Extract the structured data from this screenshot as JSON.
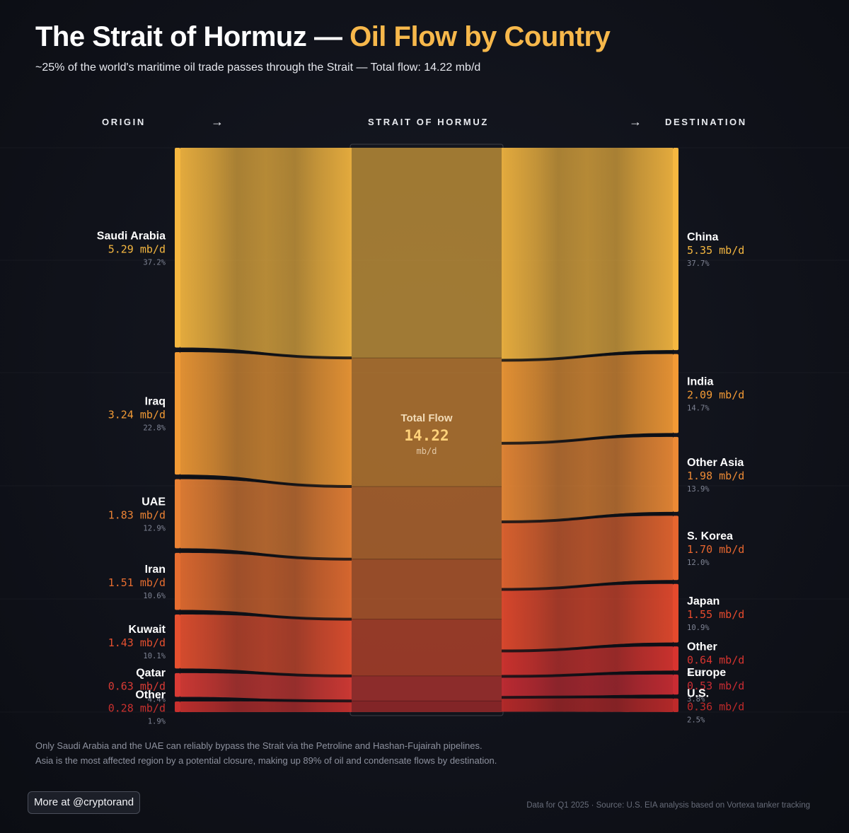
{
  "header": {
    "title_main": "The Strait of Hormuz — ",
    "title_accent": "Oil Flow by Country",
    "subtitle": "~25% of the world's maritime oil trade passes through the Strait — Total flow: 14.22 mb/d"
  },
  "columns": {
    "origin": "ORIGIN",
    "middle": "STRAIT OF HORMUZ",
    "destination": "DESTINATION",
    "arrow": "→"
  },
  "colors": {
    "accent": "#f7b84b",
    "background": "#10121a",
    "origin_nodes": [
      "#f5b740",
      "#f19a35",
      "#ea8234",
      "#e66d30",
      "#e5502f",
      "#d93b35",
      "#c8302e"
    ],
    "destination_nodes": [
      "#f5b740",
      "#f39a35",
      "#ec8a35",
      "#e7662f",
      "#e64a2d",
      "#d8342f",
      "#c92c33",
      "#be2a2a"
    ]
  },
  "chart_data": {
    "type": "sankey",
    "unit": "mb/d",
    "total": {
      "label": "Total Flow",
      "value": "14.22",
      "unit": "mb/d"
    },
    "origins": [
      {
        "name": "Saudi Arabia",
        "value": 5.29,
        "value_text": "5.29 mb/d",
        "share": "37.2%"
      },
      {
        "name": "Iraq",
        "value": 3.24,
        "value_text": "3.24 mb/d",
        "share": "22.8%"
      },
      {
        "name": "UAE",
        "value": 1.83,
        "value_text": "1.83 mb/d",
        "share": "12.9%"
      },
      {
        "name": "Iran",
        "value": 1.51,
        "value_text": "1.51 mb/d",
        "share": "10.6%"
      },
      {
        "name": "Kuwait",
        "value": 1.43,
        "value_text": "1.43 mb/d",
        "share": "10.1%"
      },
      {
        "name": "Qatar",
        "value": 0.63,
        "value_text": "0.63 mb/d",
        "share": "4.4%"
      },
      {
        "name": "Other",
        "value": 0.28,
        "value_text": "0.28 mb/d",
        "share": "1.9%"
      }
    ],
    "destinations": [
      {
        "name": "China",
        "value": 5.35,
        "value_text": "5.35 mb/d",
        "share": "37.7%"
      },
      {
        "name": "India",
        "value": 2.09,
        "value_text": "2.09 mb/d",
        "share": "14.7%"
      },
      {
        "name": "Other Asia",
        "value": 1.98,
        "value_text": "1.98 mb/d",
        "share": "13.9%"
      },
      {
        "name": "S. Korea",
        "value": 1.7,
        "value_text": "1.70 mb/d",
        "share": "12.0%"
      },
      {
        "name": "Japan",
        "value": 1.55,
        "value_text": "1.55 mb/d",
        "share": "10.9%"
      },
      {
        "name": "Other",
        "value": 0.64,
        "value_text": "0.64 mb/d",
        "share": "4.5%"
      },
      {
        "name": "Europe",
        "value": 0.53,
        "value_text": "0.53 mb/d",
        "share": "3.8%"
      },
      {
        "name": "U.S.",
        "value": 0.36,
        "value_text": "0.36 mb/d",
        "share": "2.5%"
      }
    ]
  },
  "notes": {
    "line1": "Only Saudi Arabia and the UAE can reliably bypass the Strait via the Petroline and Hashan-Fujairah pipelines.",
    "line2": "Asia is the most affected region by a potential closure, making up 89% of oil and condensate flows by destination."
  },
  "footer": {
    "more_button": "More at @cryptorand",
    "source": "Data for Q1 2025 · Source: U.S. EIA analysis based on Vortexa tanker tracking"
  }
}
